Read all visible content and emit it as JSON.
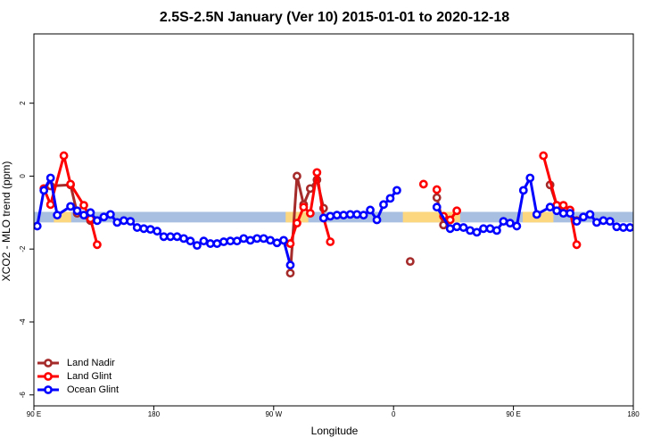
{
  "chart_data": {
    "type": "line",
    "title": "2.5S-2.5N January (Ver 10)   2015-01-01 to 2020-12-18",
    "xlabel": "Longitude",
    "ylabel": "XCO2 - MLO trend (ppm)",
    "xlim": [
      90,
      540
    ],
    "ylim": [
      -6.3,
      3.9
    ],
    "xticks": [
      {
        "value": 90,
        "label": "90 E"
      },
      {
        "value": 180,
        "label": "180"
      },
      {
        "value": 270,
        "label": "90 W"
      },
      {
        "value": 360,
        "label": "0"
      },
      {
        "value": 450,
        "label": "90 E"
      },
      {
        "value": 540,
        "label": "180"
      }
    ],
    "yticks": [
      -6,
      -4,
      -2,
      0,
      2
    ],
    "legend": "bottom-left",
    "band": {
      "ylim": [
        -1.27,
        -0.98
      ],
      "color": "#a8bfe2"
    },
    "band_highlights": {
      "color": "#fcd77f",
      "ranges": [
        [
          105,
          118
        ],
        [
          279,
          296
        ],
        [
          367,
          410
        ],
        [
          457,
          480
        ]
      ]
    },
    "series": [
      {
        "name": "Land Nadir",
        "color": "#a52a2a",
        "x": [
          102.5,
          117.5,
          122.5,
          132.5,
          null,
          282.5,
          287.5,
          292.5,
          297.5,
          302.5,
          307.5,
          null,
          372.5,
          null,
          392.5,
          397.5,
          null,
          477.5,
          482.5,
          497.5
        ],
        "values": [
          -0.27,
          -0.24,
          -1.02,
          -1.22,
          null,
          -2.66,
          0,
          -0.78,
          -0.34,
          -0.1,
          -0.88,
          null,
          -2.34,
          null,
          -0.59,
          -1.34,
          null,
          -0.24,
          -0.8,
          -1.22
        ]
      },
      {
        "name": "Land Glint",
        "color": "#ff0000",
        "x": [
          97.5,
          102.5,
          112.5,
          117.5,
          127.5,
          132.5,
          137.5,
          null,
          282.5,
          287.5,
          292.5,
          297.5,
          302.5,
          307.5,
          312.5,
          null,
          382.5,
          null,
          392.5,
          null,
          397.5,
          402.5,
          407.5,
          null,
          472.5,
          482.5,
          487.5,
          492.5,
          497.5
        ],
        "values": [
          -0.34,
          -0.78,
          0.56,
          -0.22,
          -0.8,
          -1.17,
          -1.88,
          null,
          -1.85,
          -1.29,
          -0.85,
          -1.02,
          0.1,
          -1.15,
          -1.8,
          null,
          -0.22,
          null,
          -0.37,
          null,
          -1.1,
          -1.2,
          -0.95,
          null,
          0.56,
          -0.8,
          -0.8,
          -0.93,
          -1.88
        ]
      },
      {
        "name": "Ocean Glint",
        "color": "#0000ff",
        "x": [
          92.5,
          97.5,
          102.5,
          107.5,
          117.5,
          122.5,
          127.5,
          132.5,
          137.5,
          142.5,
          147.5,
          152.5,
          157.5,
          162.5,
          167.5,
          172.5,
          177.5,
          182.5,
          187.5,
          192.5,
          197.5,
          202.5,
          207.5,
          212.5,
          217.5,
          222.5,
          227.5,
          232.5,
          237.5,
          242.5,
          247.5,
          252.5,
          257.5,
          262.5,
          267.5,
          272.5,
          277.5,
          282.5,
          null,
          307.5,
          312.5,
          317.5,
          322.5,
          327.5,
          332.5,
          337.5,
          342.5,
          347.5,
          352.5,
          357.5,
          362.5,
          null,
          392.5,
          402.5,
          407.5,
          412.5,
          417.5,
          422.5,
          427.5,
          432.5,
          437.5,
          442.5,
          447.5,
          452.5,
          457.5,
          462.5,
          467.5,
          477.5,
          482.5,
          487.5,
          492.5,
          497.5,
          502.5,
          507.5,
          512.5,
          517.5,
          522.5,
          527.5,
          532.5,
          537.5
        ],
        "values": [
          -1.37,
          -0.39,
          -0.05,
          -1.07,
          -0.83,
          -0.95,
          -1.07,
          -1.0,
          -1.22,
          -1.12,
          -1.05,
          -1.27,
          -1.22,
          -1.24,
          -1.41,
          -1.44,
          -1.46,
          -1.51,
          -1.66,
          -1.66,
          -1.66,
          -1.71,
          -1.78,
          -1.9,
          -1.78,
          -1.85,
          -1.85,
          -1.8,
          -1.78,
          -1.78,
          -1.71,
          -1.76,
          -1.71,
          -1.71,
          -1.76,
          -1.83,
          -1.76,
          -2.44,
          null,
          -1.15,
          -1.1,
          -1.07,
          -1.07,
          -1.05,
          -1.05,
          -1.07,
          -0.93,
          -1.2,
          -0.78,
          -0.61,
          -0.39,
          null,
          -0.85,
          -1.44,
          -1.39,
          -1.41,
          -1.49,
          -1.54,
          -1.44,
          -1.44,
          -1.49,
          -1.24,
          -1.29,
          -1.37,
          -0.39,
          -0.05,
          -1.05,
          -0.85,
          -0.95,
          -1.02,
          -1.02,
          -1.24,
          -1.12,
          -1.05,
          -1.27,
          -1.22,
          -1.24,
          -1.39,
          -1.41,
          -1.41
        ]
      }
    ]
  }
}
